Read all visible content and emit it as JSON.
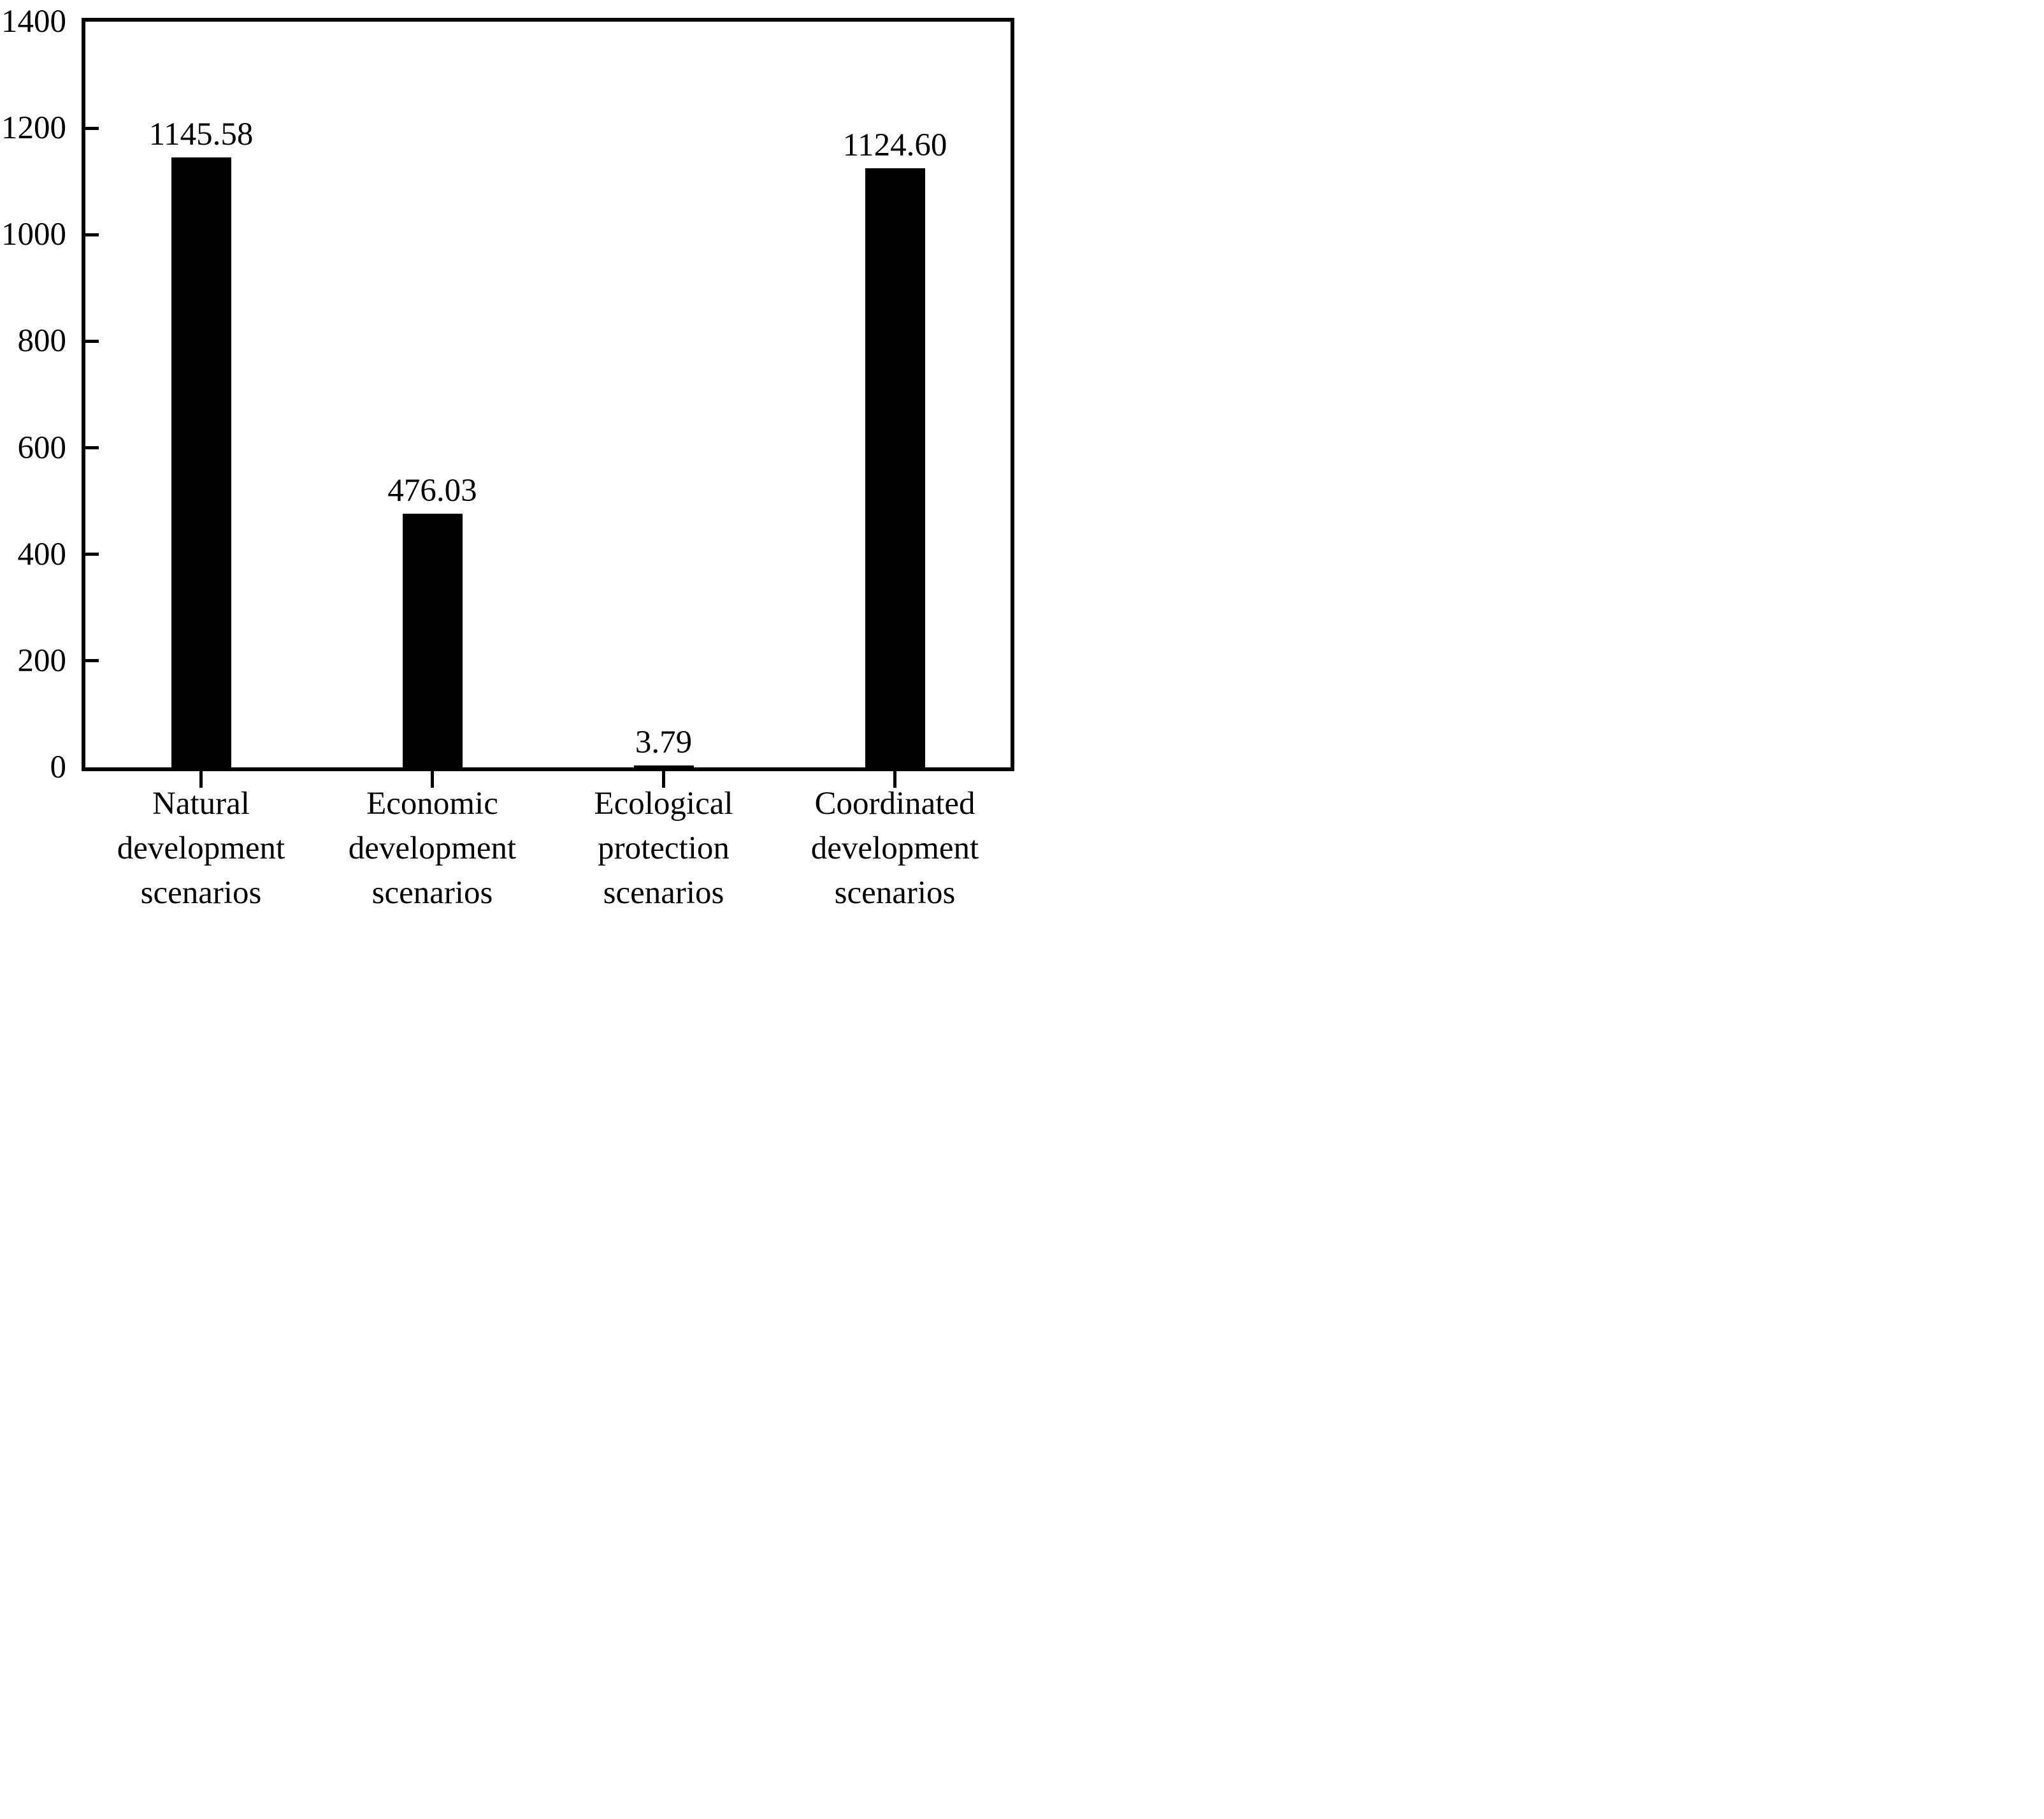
{
  "chart_data": {
    "type": "bar",
    "title": "",
    "xlabel": "",
    "ylabel": "",
    "categories": [
      "Natural development scenarios",
      "Economic development scenarios",
      "Ecological protection scenarios",
      "Coordinated development scenarios"
    ],
    "categories_lines": [
      [
        "Natural",
        "development",
        "scenarios"
      ],
      [
        "Economic",
        "development",
        "scenarios"
      ],
      [
        "Ecological",
        "protection",
        "scenarios"
      ],
      [
        "Coordinated",
        "development",
        "scenarios"
      ]
    ],
    "values": [
      1145.58,
      476.03,
      3.79,
      1124.6
    ],
    "value_labels": [
      "1145.58",
      "476.03",
      "3.79",
      "1124.60"
    ],
    "ylim": [
      0,
      1400
    ],
    "yticks": [
      1400,
      1200,
      1000,
      800,
      600,
      400,
      200,
      0
    ],
    "ytick_labels": [
      "1400",
      "1200",
      "1000",
      "800",
      "600",
      "400",
      "200",
      "0"
    ],
    "inner_ytick_values": [
      1200,
      1000,
      800,
      600,
      400,
      200
    ],
    "bar_color": "#000000",
    "frame_color": "#000000",
    "background_color": "#ffffff",
    "grid": false,
    "legend": false
  }
}
